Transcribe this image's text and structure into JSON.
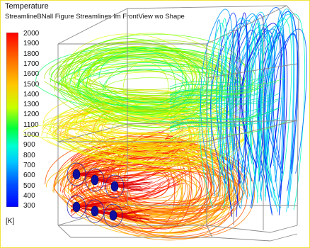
{
  "legend": {
    "title": "Temperature",
    "subtitle": "StreamlineBNall Figure Streamlines fm FrontView wo Shape",
    "unit": "[K]",
    "ticks": [
      "2000",
      "1900",
      "1800",
      "1700",
      "1600",
      "1500",
      "1400",
      "1300",
      "1200",
      "1100",
      "1000",
      "900",
      "800",
      "700",
      "600",
      "500",
      "400",
      "300"
    ],
    "colorbar_colors": [
      "#ff0000",
      "#ff6a00",
      "#ffc800",
      "#c8ff00",
      "#00ff3c",
      "#00ffd2",
      "#00c8ff",
      "#0050ff",
      "#0000ff"
    ]
  }
}
